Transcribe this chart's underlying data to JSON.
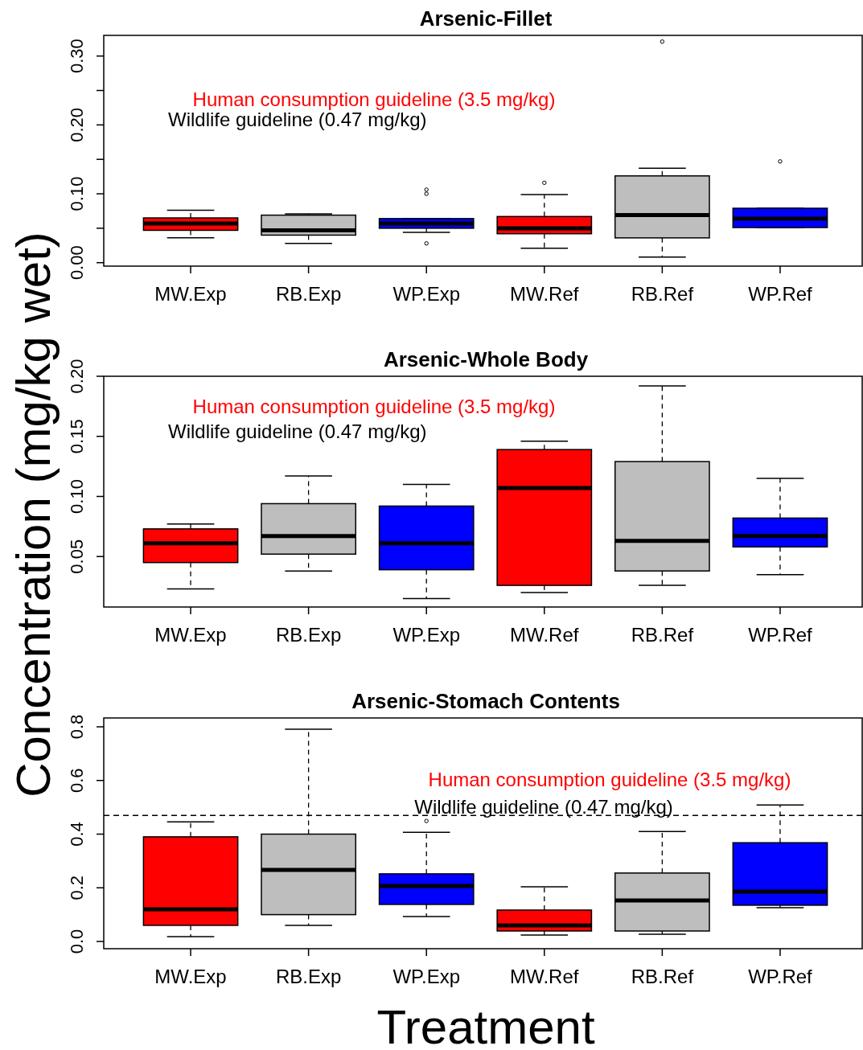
{
  "chart_data": [
    {
      "type": "box",
      "title": "Arsenic-Fillet",
      "categories": [
        "MW.Exp",
        "RB.Exp",
        "WP.Exp",
        "MW.Ref",
        "RB.Ref",
        "WP.Ref"
      ],
      "colors": [
        "#ff0000",
        "#bebebe",
        "#0000ff",
        "#ff0000",
        "#bebebe",
        "#0000ff"
      ],
      "boxes": [
        {
          "low": 0.036,
          "q1": 0.047,
          "median": 0.057,
          "q3": 0.065,
          "high": 0.076
        },
        {
          "low": 0.028,
          "q1": 0.04,
          "median": 0.047,
          "q3": 0.069,
          "high": 0.071
        },
        {
          "low": 0.044,
          "q1": 0.05,
          "median": 0.057,
          "q3": 0.064,
          "high": 0.064,
          "outliers": [
            0.106,
            0.1,
            0.028
          ]
        },
        {
          "low": 0.021,
          "q1": 0.042,
          "median": 0.05,
          "q3": 0.067,
          "high": 0.099,
          "outliers": [
            0.116
          ]
        },
        {
          "low": 0.008,
          "q1": 0.036,
          "median": 0.069,
          "q3": 0.126,
          "high": 0.137,
          "outliers": [
            0.321
          ]
        },
        {
          "low": 0.051,
          "q1": 0.051,
          "median": 0.064,
          "q3": 0.079,
          "high": 0.079,
          "outliers": [
            0.147
          ]
        }
      ],
      "ylim": [
        -0.005,
        0.33
      ],
      "yticks": [
        {
          "value": 0,
          "label": "0.00"
        },
        {
          "value": 0.05,
          "label": null
        },
        {
          "value": 0.1,
          "label": "0.10"
        },
        {
          "value": 0.15,
          "label": null
        },
        {
          "value": 0.2,
          "label": "0.20"
        },
        {
          "value": 0.25,
          "label": null
        },
        {
          "value": 0.3,
          "label": "0.30"
        }
      ],
      "annotations": [
        "Human consumption guideline (3.5 mg/kg)",
        "Wildlife guideline (0.47 mg/kg)"
      ],
      "grid": false
    },
    {
      "type": "box",
      "title": "Arsenic-Whole Body",
      "ylabel": "Concentration (mg/kg wet)",
      "categories": [
        "MW.Exp",
        "RB.Exp",
        "WP.Exp",
        "MW.Ref",
        "RB.Ref",
        "WP.Ref"
      ],
      "colors": [
        "#ff0000",
        "#bebebe",
        "#0000ff",
        "#ff0000",
        "#bebebe",
        "#0000ff"
      ],
      "boxes": [
        {
          "low": 0.023,
          "q1": 0.045,
          "median": 0.061,
          "q3": 0.073,
          "high": 0.077
        },
        {
          "low": 0.038,
          "q1": 0.052,
          "median": 0.067,
          "q3": 0.094,
          "high": 0.117
        },
        {
          "low": 0.015,
          "q1": 0.039,
          "median": 0.061,
          "q3": 0.092,
          "high": 0.11
        },
        {
          "low": 0.02,
          "q1": 0.026,
          "median": 0.107,
          "q3": 0.139,
          "high": 0.146
        },
        {
          "low": 0.026,
          "q1": 0.038,
          "median": 0.063,
          "q3": 0.129,
          "high": 0.192
        },
        {
          "low": 0.035,
          "q1": 0.058,
          "median": 0.067,
          "q3": 0.082,
          "high": 0.115
        }
      ],
      "ylim": [
        0.008,
        0.2
      ],
      "yticks": [
        {
          "value": 0.05,
          "label": "0.05"
        },
        {
          "value": 0.1,
          "label": "0.10"
        },
        {
          "value": 0.15,
          "label": "0.15"
        },
        {
          "value": 0.2,
          "label": "0.20"
        }
      ],
      "annotations": [
        "Human consumption guideline (3.5 mg/kg)",
        "Wildlife guideline (0.47 mg/kg)"
      ],
      "grid": false
    },
    {
      "type": "box",
      "title": "Arsenic-Stomach Contents",
      "xlabel": "Treatment",
      "categories": [
        "MW.Exp",
        "RB.Exp",
        "WP.Exp",
        "MW.Ref",
        "RB.Ref",
        "WP.Ref"
      ],
      "colors": [
        "#ff0000",
        "#bebebe",
        "#0000ff",
        "#ff0000",
        "#bebebe",
        "#0000ff"
      ],
      "boxes": [
        {
          "low": 0.018,
          "q1": 0.06,
          "median": 0.12,
          "q3": 0.39,
          "high": 0.446
        },
        {
          "low": 0.06,
          "q1": 0.1,
          "median": 0.267,
          "q3": 0.4,
          "high": 0.791
        },
        {
          "low": 0.093,
          "q1": 0.138,
          "median": 0.207,
          "q3": 0.252,
          "high": 0.407,
          "outliers": [
            0.449
          ]
        },
        {
          "low": 0.024,
          "q1": 0.039,
          "median": 0.06,
          "q3": 0.117,
          "high": 0.204
        },
        {
          "low": 0.027,
          "q1": 0.039,
          "median": 0.153,
          "q3": 0.255,
          "high": 0.41
        },
        {
          "low": 0.126,
          "q1": 0.135,
          "median": 0.186,
          "q3": 0.368,
          "high": 0.509
        }
      ],
      "ylim": [
        -0.027,
        0.833
      ],
      "yticks": [
        {
          "value": 0,
          "label": "0.0"
        },
        {
          "value": 0.2,
          "label": "0.2"
        },
        {
          "value": 0.4,
          "label": "0.4"
        },
        {
          "value": 0.6,
          "label": "0.6"
        },
        {
          "value": 0.8,
          "label": "0.8"
        }
      ],
      "ref_lines": [
        {
          "axis": "y",
          "value": 0.47,
          "label": "Wildlife guideline (0.47 mg/kg)",
          "line_style": "dashed"
        }
      ],
      "annotations": [
        "Human consumption guideline (3.5 mg/kg)"
      ],
      "grid": false
    }
  ]
}
